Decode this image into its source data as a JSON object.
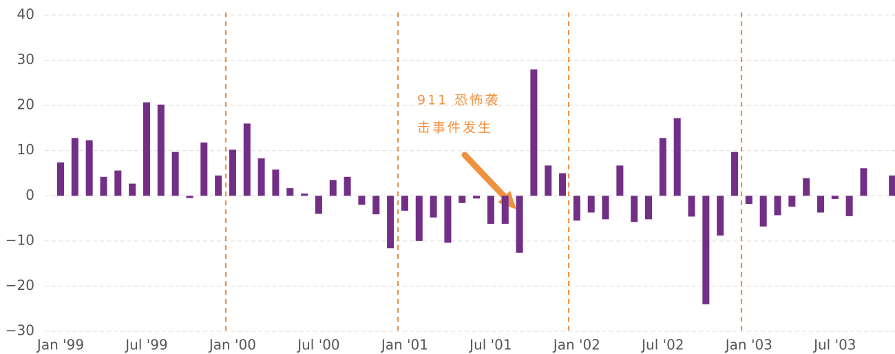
{
  "chart_data": {
    "type": "bar",
    "categories": [
      "Jan '99",
      null,
      null,
      null,
      null,
      null,
      "Jul '99",
      null,
      null,
      null,
      null,
      null,
      "Jan '00",
      null,
      null,
      null,
      null,
      null,
      "Jul '00",
      null,
      null,
      null,
      null,
      null,
      "Jan '01",
      null,
      null,
      null,
      null,
      null,
      "Jul '01",
      null,
      null,
      null,
      null,
      null,
      "Jan '02",
      null,
      null,
      null,
      null,
      null,
      "Jul '02",
      null,
      null,
      null,
      null,
      null,
      "Jan '03",
      null,
      null,
      null,
      null,
      null,
      "Jul '03",
      null,
      null,
      null,
      null
    ],
    "values": [
      7.4,
      12.8,
      12.3,
      4.2,
      5.6,
      2.7,
      20.7,
      20.2,
      9.7,
      -0.5,
      11.8,
      4.5,
      10.2,
      16.0,
      8.3,
      5.8,
      1.7,
      0.5,
      -4.0,
      3.5,
      4.2,
      -2.0,
      -4.1,
      -11.6,
      -3.3,
      -10.0,
      -4.8,
      -10.4,
      -1.6,
      -0.6,
      -6.2,
      -6.2,
      -12.6,
      28.0,
      6.7,
      5.0,
      -5.5,
      -3.7,
      -5.2,
      6.7,
      -5.8,
      -5.2,
      12.8,
      17.2,
      -4.6,
      -24.0,
      -8.8,
      9.7,
      -1.8,
      -6.8,
      -4.3,
      -2.4,
      3.9,
      -3.7,
      -0.7,
      -4.5,
      6.1,
      null,
      4.5
    ],
    "color": "#722f86",
    "ylim": [
      -30,
      40
    ],
    "yticks": [
      -30,
      -20,
      -10,
      0,
      10,
      20,
      30,
      40
    ],
    "grid": true,
    "annotation": [
      "911 恐怖袭",
      "击事件发生"
    ]
  }
}
